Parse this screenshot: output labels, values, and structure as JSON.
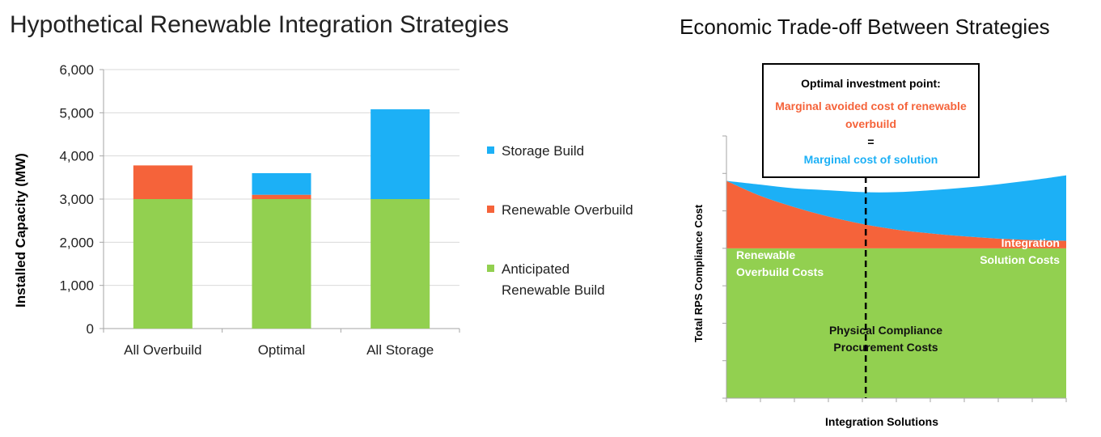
{
  "colors": {
    "storage": "#1cb0f6",
    "overbuild": "#f5633a",
    "anticipated": "#92d050",
    "axis": "#a6a6a6"
  },
  "left": {
    "title": "Hypothetical Renewable Integration Strategies",
    "ylabel": "Installed Capacity (MW)",
    "legend": [
      {
        "key": "storage",
        "label": "Storage Build"
      },
      {
        "key": "overbuild",
        "label": "Renewable Overbuild"
      },
      {
        "key": "anticipated",
        "label": "Anticipated Renewable Build"
      }
    ]
  },
  "right": {
    "title": "Economic Trade-off Between Strategies",
    "ylabel": "Total RPS Compliance Cost",
    "xlabel": "Integration Solutions",
    "callout": {
      "title": "Optimal investment point:",
      "line1": "Marginal avoided cost of renewable overbuild",
      "equals": "=",
      "line2": "Marginal cost of solution"
    },
    "labels": {
      "overbuild": "Renewable Overbuild Costs",
      "integration": "Integration Solution Costs",
      "physical": "Physical Compliance Procurement Costs"
    }
  },
  "chart_data": [
    {
      "type": "bar",
      "stacked": true,
      "title": "Hypothetical Renewable Integration Strategies",
      "xlabel": "",
      "ylabel": "Installed Capacity (MW)",
      "categories": [
        "All Overbuild",
        "Optimal",
        "All Storage"
      ],
      "series": [
        {
          "name": "Anticipated Renewable Build",
          "values": [
            3000,
            3000,
            3000
          ]
        },
        {
          "name": "Renewable Overbuild",
          "values": [
            780,
            100,
            0
          ]
        },
        {
          "name": "Storage Build",
          "values": [
            0,
            500,
            2080
          ]
        }
      ],
      "ylim": [
        0,
        6000
      ],
      "yticks": [
        0,
        1000,
        2000,
        3000,
        4000,
        5000,
        6000
      ],
      "ytick_labels": [
        "0",
        "1,000",
        "2,000",
        "3,000",
        "4,000",
        "5,000",
        "6,000"
      ],
      "grid": true,
      "legend": "right"
    },
    {
      "type": "area",
      "stacked": true,
      "title": "Economic Trade-off Between Strategies",
      "xlabel": "Integration Solutions",
      "ylabel": "Total RPS Compliance Cost",
      "x": [
        0,
        1,
        2,
        3,
        4,
        5,
        6,
        7,
        8,
        9,
        10
      ],
      "series": [
        {
          "name": "Physical Compliance Procurement Costs",
          "values": [
            40,
            40,
            40,
            40,
            40,
            40,
            40,
            40,
            40,
            40,
            40
          ]
        },
        {
          "name": "Renewable Overbuild Costs",
          "values": [
            18,
            14,
            11,
            8.5,
            6.5,
            5,
            4,
            3.2,
            2.6,
            2.2,
            2
          ]
        },
        {
          "name": "Integration Solution Costs",
          "values": [
            0,
            3,
            5,
            7,
            8.5,
            10,
            11.5,
            13,
            14.5,
            16,
            17.5
          ]
        }
      ],
      "ylim": [
        0,
        70
      ],
      "optimal_x": 4.1,
      "grid": false
    }
  ]
}
